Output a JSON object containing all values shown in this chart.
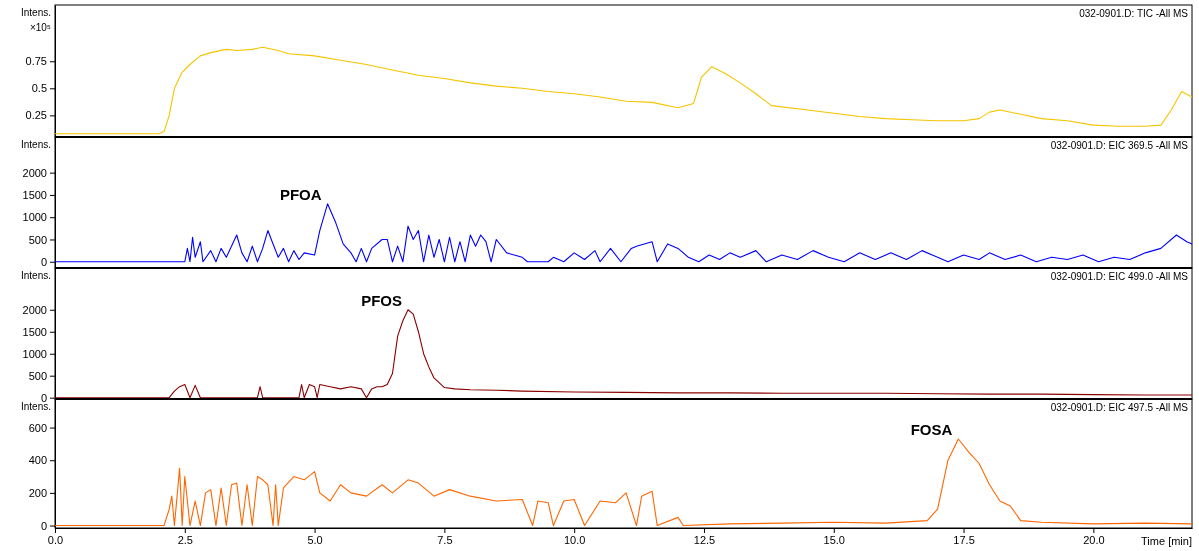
{
  "chart_data": [
    {
      "type": "line",
      "title": "032-0901.D: TIC -All MS",
      "ylabel": "Intens. ×10⁵",
      "xlim": [
        0,
        21.9
      ],
      "ylim": [
        0.05,
        1.27
      ],
      "yticks": [
        0.25,
        0.5,
        0.75
      ],
      "tick_labels": "y",
      "grid": false,
      "marker": "none",
      "line_style": "solid",
      "series": [
        {
          "color": "#f5c400",
          "x": [
            0,
            1,
            2.0,
            2.1,
            2.2,
            2.3,
            2.45,
            2.6,
            2.8,
            3.0,
            3.3,
            3.5,
            3.8,
            4.0,
            4.3,
            4.5,
            5.0,
            5.5,
            6.0,
            6.5,
            7.0,
            7.5,
            8.0,
            8.5,
            9.0,
            9.5,
            10,
            10.5,
            11,
            11.5,
            12.0,
            12.3,
            12.45,
            12.65,
            12.9,
            13.2,
            13.5,
            13.8,
            14.5,
            15,
            15.5,
            16,
            16.5,
            17,
            17.5,
            17.8,
            18.0,
            18.2,
            18.5,
            19,
            19.5,
            20,
            20.5,
            21,
            21.3,
            21.5,
            21.7,
            21.9
          ],
          "values": [
            0.08,
            0.08,
            0.08,
            0.1,
            0.25,
            0.5,
            0.65,
            0.72,
            0.8,
            0.83,
            0.86,
            0.85,
            0.86,
            0.88,
            0.85,
            0.82,
            0.8,
            0.76,
            0.72,
            0.67,
            0.62,
            0.59,
            0.55,
            0.52,
            0.5,
            0.47,
            0.45,
            0.42,
            0.38,
            0.37,
            0.32,
            0.36,
            0.6,
            0.7,
            0.64,
            0.55,
            0.45,
            0.34,
            0.3,
            0.27,
            0.24,
            0.22,
            0.21,
            0.2,
            0.2,
            0.22,
            0.28,
            0.3,
            0.27,
            0.22,
            0.2,
            0.16,
            0.15,
            0.15,
            0.16,
            0.3,
            0.47,
            0.42
          ]
        }
      ]
    },
    {
      "type": "line",
      "title": "032-0901.D: EIC 369.5 -All MS",
      "ylabel": "Intens.",
      "annotations": [
        {
          "text": "PFOA",
          "x": 5.25,
          "y": 1300
        }
      ],
      "xlim": [
        0,
        21.9
      ],
      "ylim": [
        -140,
        2800
      ],
      "yticks": [
        0,
        500,
        1000,
        1500,
        2000
      ],
      "tick_labels": "y",
      "grid": false,
      "marker": "none",
      "line_style": "solid",
      "series": [
        {
          "color": "#0000ff",
          "x": [
            0,
            2.5,
            2.55,
            2.6,
            2.65,
            2.7,
            2.8,
            2.85,
            3.0,
            3.1,
            3.2,
            3.3,
            3.5,
            3.6,
            3.7,
            3.8,
            3.9,
            4.0,
            4.1,
            4.2,
            4.3,
            4.4,
            4.5,
            4.6,
            4.7,
            4.8,
            5.0,
            5.1,
            5.25,
            5.4,
            5.55,
            5.7,
            5.8,
            5.9,
            6.0,
            6.1,
            6.3,
            6.4,
            6.5,
            6.6,
            6.7,
            6.8,
            6.9,
            7.0,
            7.1,
            7.2,
            7.3,
            7.4,
            7.5,
            7.6,
            7.7,
            7.8,
            7.9,
            8.0,
            8.1,
            8.2,
            8.3,
            8.4,
            8.5,
            8.7,
            9.0,
            9.1,
            9.5,
            9.6,
            9.8,
            10.0,
            10.2,
            10.4,
            10.5,
            10.7,
            10.9,
            11.1,
            11.2,
            11.5,
            11.6,
            11.8,
            12.0,
            12.2,
            12.4,
            12.6,
            12.8,
            13.0,
            13.2,
            13.5,
            13.7,
            14.0,
            14.3,
            14.6,
            14.9,
            15.2,
            15.5,
            15.8,
            16.1,
            16.4,
            16.7,
            17.0,
            17.2,
            17.5,
            17.8,
            18.0,
            18.3,
            18.6,
            18.9,
            19.2,
            19.5,
            19.8,
            20.1,
            20.4,
            20.7,
            21.0,
            21.3,
            21.6,
            21.8,
            21.9
          ],
          "values": [
            0,
            0,
            300,
            0,
            550,
            100,
            450,
            0,
            250,
            0,
            300,
            100,
            600,
            200,
            0,
            350,
            0,
            300,
            700,
            400,
            100,
            300,
            0,
            250,
            50,
            200,
            150,
            700,
            1300,
            900,
            400,
            200,
            0,
            300,
            0,
            300,
            500,
            500,
            0,
            350,
            0,
            800,
            500,
            700,
            0,
            600,
            100,
            500,
            0,
            550,
            0,
            450,
            0,
            600,
            350,
            600,
            450,
            0,
            500,
            200,
            100,
            0,
            0,
            100,
            0,
            200,
            50,
            250,
            0,
            300,
            0,
            300,
            350,
            450,
            0,
            400,
            300,
            100,
            0,
            150,
            50,
            200,
            100,
            250,
            0,
            150,
            50,
            250,
            100,
            0,
            200,
            50,
            200,
            50,
            250,
            100,
            0,
            150,
            50,
            200,
            50,
            150,
            0,
            100,
            50,
            150,
            0,
            100,
            50,
            200,
            300,
            600,
            450,
            400
          ]
        }
      ]
    },
    {
      "type": "line",
      "title": "032-0901.D: EIC 499.0 -All MS",
      "ylabel": "Intens.",
      "annotations": [
        {
          "text": "PFOS",
          "x": 6.8,
          "y": 2000
        }
      ],
      "xlim": [
        0,
        21.9
      ],
      "ylim": [
        -30,
        2950
      ],
      "yticks": [
        0,
        500,
        1000,
        1500,
        2000
      ],
      "tick_labels": "y",
      "grid": false,
      "marker": "none",
      "line_style": "solid",
      "series": [
        {
          "color": "#8b0000",
          "x": [
            0,
            2.2,
            2.3,
            2.4,
            2.5,
            2.6,
            2.7,
            2.8,
            2.9,
            3.0,
            3.5,
            3.9,
            3.95,
            4.0,
            4.7,
            4.75,
            4.8,
            4.9,
            5.0,
            5.05,
            5.1,
            5.3,
            5.5,
            5.7,
            5.9,
            6.0,
            6.1,
            6.2,
            6.3,
            6.4,
            6.5,
            6.6,
            6.7,
            6.8,
            6.9,
            7.0,
            7.1,
            7.2,
            7.3,
            7.5,
            7.7,
            8.0,
            8.5,
            9,
            10,
            11,
            12,
            13,
            14,
            15,
            16,
            17,
            18,
            19,
            20,
            21,
            21.9
          ],
          "values": [
            0,
            0,
            150,
            250,
            300,
            0,
            280,
            0,
            0,
            0,
            0,
            0,
            250,
            0,
            0,
            300,
            0,
            300,
            250,
            0,
            300,
            250,
            200,
            250,
            200,
            0,
            200,
            250,
            250,
            300,
            550,
            1400,
            1750,
            2000,
            1900,
            1500,
            1000,
            700,
            450,
            230,
            200,
            180,
            170,
            150,
            130,
            120,
            110,
            110,
            100,
            100,
            100,
            90,
            80,
            80,
            70,
            60,
            60
          ]
        }
      ]
    },
    {
      "type": "line",
      "title": "032-0901.D: EIC 497.5 -All MS",
      "ylabel": "Intens.",
      "xlabel": "Time [min]",
      "annotations": [
        {
          "text": "FOSA",
          "x": 17.4,
          "y": 530
        }
      ],
      "xlim": [
        0,
        21.9
      ],
      "ylim": [
        -15,
        775
      ],
      "xticks": [
        {
          "value": 0,
          "label": "0.0"
        },
        2.5,
        {
          "value": 5,
          "label": "5.0"
        },
        7.5,
        {
          "value": 10,
          "label": "10.0"
        },
        12.5,
        {
          "value": 15,
          "label": "15.0"
        },
        17.5,
        {
          "value": 20,
          "label": "20.0"
        }
      ],
      "yticks": [
        0,
        200,
        400,
        600
      ],
      "grid": false,
      "marker": "none",
      "line_style": "solid",
      "series": [
        {
          "color": "#ff6600",
          "x": [
            0,
            2.1,
            2.2,
            2.25,
            2.3,
            2.4,
            2.45,
            2.5,
            2.6,
            2.7,
            2.8,
            2.9,
            3.0,
            3.1,
            3.2,
            3.3,
            3.4,
            3.5,
            3.6,
            3.7,
            3.8,
            3.9,
            4.0,
            4.1,
            4.2,
            4.25,
            4.3,
            4.4,
            4.6,
            4.8,
            5.0,
            5.1,
            5.3,
            5.5,
            5.7,
            6.0,
            6.3,
            6.5,
            6.8,
            7.0,
            7.3,
            7.6,
            8.0,
            8.5,
            9.0,
            9.2,
            9.3,
            9.5,
            9.6,
            9.8,
            10.0,
            10.2,
            10.5,
            10.8,
            11.0,
            11.2,
            11.3,
            11.5,
            11.6,
            12.0,
            12.1,
            13,
            14,
            15,
            16,
            16.8,
            17.0,
            17.2,
            17.4,
            17.6,
            17.8,
            18.0,
            18.2,
            18.4,
            18.6,
            19,
            20,
            21,
            21.9
          ],
          "values": [
            0,
            0,
            100,
            180,
            0,
            350,
            0,
            300,
            0,
            150,
            0,
            200,
            220,
            0,
            230,
            0,
            250,
            260,
            0,
            250,
            0,
            300,
            280,
            250,
            0,
            250,
            0,
            230,
            300,
            280,
            330,
            200,
            150,
            250,
            200,
            180,
            250,
            200,
            280,
            260,
            180,
            220,
            180,
            150,
            160,
            0,
            150,
            140,
            0,
            150,
            160,
            0,
            150,
            140,
            200,
            0,
            180,
            210,
            0,
            50,
            0,
            10,
            15,
            20,
            15,
            30,
            100,
            400,
            530,
            450,
            380,
            250,
            150,
            120,
            30,
            20,
            10,
            15,
            10
          ]
        }
      ]
    }
  ]
}
